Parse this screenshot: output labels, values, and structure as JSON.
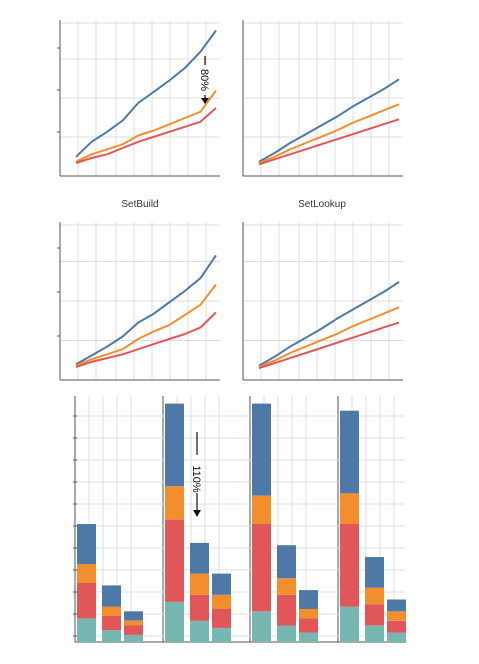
{
  "colors": {
    "blue": "#4e79a7",
    "orange": "#f28e2b",
    "red": "#e15759",
    "teal": "#76b7b2",
    "grid": "#dddddd",
    "axis": "#555555"
  },
  "chart_data": [
    {
      "type": "line",
      "title": "",
      "label_below": "SetBuild",
      "x": [
        0,
        1,
        2,
        3,
        4,
        5,
        6,
        7,
        8,
        9
      ],
      "ylim": [
        0,
        1
      ],
      "grid": true,
      "series": [
        {
          "color": "blue",
          "values": [
            0.09,
            0.21,
            0.29,
            0.38,
            0.52,
            0.61,
            0.7,
            0.8,
            0.93,
            1.1
          ]
        },
        {
          "color": "orange",
          "values": [
            0.05,
            0.11,
            0.15,
            0.19,
            0.26,
            0.3,
            0.35,
            0.4,
            0.45,
            0.62
          ]
        },
        {
          "color": "red",
          "values": [
            0.04,
            0.08,
            0.11,
            0.16,
            0.21,
            0.25,
            0.29,
            0.33,
            0.37,
            0.48
          ]
        }
      ],
      "annotation": {
        "text": "80%",
        "arrow": "down"
      }
    },
    {
      "type": "line",
      "title": "",
      "label_below": "SetLookup",
      "x": [
        0,
        1,
        2,
        3,
        4,
        5,
        6,
        7,
        8,
        9
      ],
      "ylim": [
        0,
        1
      ],
      "grid": true,
      "series": [
        {
          "color": "blue",
          "values": [
            0.05,
            0.12,
            0.2,
            0.27,
            0.34,
            0.41,
            0.49,
            0.56,
            0.63,
            0.71
          ]
        },
        {
          "color": "orange",
          "values": [
            0.04,
            0.09,
            0.15,
            0.2,
            0.25,
            0.3,
            0.36,
            0.41,
            0.46,
            0.51
          ]
        },
        {
          "color": "red",
          "values": [
            0.03,
            0.07,
            0.11,
            0.15,
            0.19,
            0.23,
            0.27,
            0.31,
            0.35,
            0.39
          ]
        }
      ]
    },
    {
      "type": "line",
      "title": "",
      "x": [
        0,
        1,
        2,
        3,
        4,
        5,
        6,
        7,
        8,
        9
      ],
      "ylim": [
        0,
        1
      ],
      "grid": true,
      "series": [
        {
          "color": "blue",
          "values": [
            0.06,
            0.13,
            0.2,
            0.28,
            0.39,
            0.46,
            0.55,
            0.64,
            0.74,
            0.92
          ]
        },
        {
          "color": "orange",
          "values": [
            0.05,
            0.1,
            0.14,
            0.18,
            0.26,
            0.32,
            0.37,
            0.45,
            0.53,
            0.69
          ]
        },
        {
          "color": "red",
          "values": [
            0.04,
            0.08,
            0.11,
            0.14,
            0.18,
            0.22,
            0.26,
            0.3,
            0.35,
            0.47
          ]
        }
      ]
    },
    {
      "type": "line",
      "title": "",
      "x": [
        0,
        1,
        2,
        3,
        4,
        5,
        6,
        7,
        8,
        9
      ],
      "ylim": [
        0,
        1
      ],
      "grid": true,
      "series": [
        {
          "color": "blue",
          "values": [
            0.05,
            0.12,
            0.2,
            0.27,
            0.34,
            0.42,
            0.49,
            0.56,
            0.63,
            0.71
          ]
        },
        {
          "color": "orange",
          "values": [
            0.04,
            0.09,
            0.15,
            0.2,
            0.25,
            0.3,
            0.36,
            0.41,
            0.46,
            0.51
          ]
        },
        {
          "color": "red",
          "values": [
            0.03,
            0.07,
            0.11,
            0.15,
            0.19,
            0.23,
            0.27,
            0.31,
            0.35,
            0.39
          ]
        }
      ]
    },
    {
      "type": "bar",
      "stacked": true,
      "title": "",
      "ylim": [
        0,
        1
      ],
      "grid": true,
      "groups": [
        {
          "bars": [
            {
              "segments": {
                "teal": 0.1,
                "red": 0.15,
                "orange": 0.08,
                "blue": 0.17
              }
            },
            {
              "segments": {
                "teal": 0.05,
                "red": 0.06,
                "orange": 0.04,
                "blue": 0.09
              }
            },
            {
              "segments": {
                "teal": 0.03,
                "red": 0.04,
                "orange": 0.02,
                "blue": 0.04
              }
            }
          ]
        },
        {
          "bars": [
            {
              "segments": {
                "teal": 0.17,
                "red": 0.35,
                "orange": 0.14,
                "blue": 0.35
              }
            },
            {
              "segments": {
                "teal": 0.09,
                "red": 0.11,
                "orange": 0.09,
                "blue": 0.13
              }
            },
            {
              "segments": {
                "teal": 0.06,
                "red": 0.08,
                "orange": 0.06,
                "blue": 0.09
              }
            }
          ]
        },
        {
          "bars": [
            {
              "segments": {
                "teal": 0.13,
                "red": 0.37,
                "orange": 0.12,
                "blue": 0.39
              }
            },
            {
              "segments": {
                "teal": 0.07,
                "red": 0.13,
                "orange": 0.07,
                "blue": 0.14
              }
            },
            {
              "segments": {
                "teal": 0.04,
                "red": 0.06,
                "orange": 0.04,
                "blue": 0.08
              }
            }
          ]
        },
        {
          "bars": [
            {
              "segments": {
                "teal": 0.15,
                "red": 0.35,
                "orange": 0.13,
                "blue": 0.35
              }
            },
            {
              "segments": {
                "teal": 0.07,
                "red": 0.09,
                "orange": 0.07,
                "blue": 0.13
              }
            },
            {
              "segments": {
                "teal": 0.04,
                "red": 0.05,
                "orange": 0.04,
                "blue": 0.05
              }
            }
          ]
        }
      ],
      "annotation": {
        "text": "110%",
        "arrow": "down"
      }
    }
  ]
}
